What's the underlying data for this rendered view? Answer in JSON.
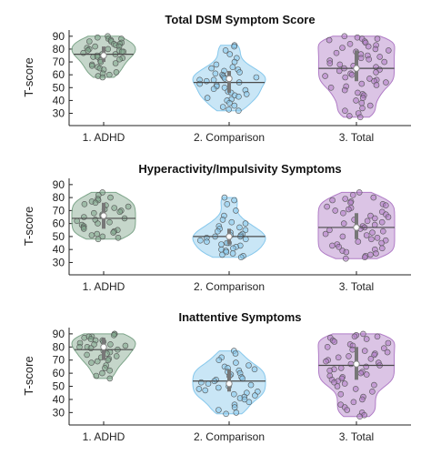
{
  "chart_data": [
    {
      "type": "violin",
      "title": "Total DSM Symptom Score",
      "ylabel": "T-score",
      "yticks": [
        30,
        40,
        50,
        60,
        70,
        80,
        90
      ],
      "ylim": [
        24,
        92
      ],
      "categories": [
        "1. ADHD",
        "2. Comparison",
        "3. Total"
      ],
      "series": [
        {
          "color": "#7ea58a",
          "min": 58,
          "max": 90,
          "mean": 76,
          "median": 75,
          "q1": 70,
          "q3": 82,
          "points": [
            90,
            89,
            88,
            88,
            87,
            86,
            86,
            85,
            84,
            84,
            83,
            82,
            82,
            81,
            80,
            80,
            79,
            79,
            78,
            78,
            77,
            76,
            76,
            75,
            74,
            74,
            73,
            72,
            71,
            70,
            69,
            68,
            67,
            66,
            65,
            64,
            62,
            61,
            60,
            59,
            58
          ]
        },
        {
          "color": "#87c8ec",
          "min": 32,
          "max": 83,
          "mean": 54,
          "median": 57,
          "q1": 46,
          "q3": 63,
          "points": [
            83,
            82,
            79,
            76,
            73,
            70,
            68,
            66,
            65,
            64,
            63,
            62,
            61,
            60,
            59,
            58,
            58,
            57,
            56,
            56,
            55,
            54,
            53,
            52,
            51,
            50,
            49,
            48,
            47,
            46,
            45,
            44,
            43,
            42,
            41,
            40,
            38,
            36,
            35,
            33,
            32
          ]
        },
        {
          "color": "#b07cc6",
          "min": 27,
          "max": 90,
          "mean": 65,
          "median": 65,
          "q1": 55,
          "q3": 79,
          "points": [
            90,
            89,
            88,
            88,
            87,
            86,
            85,
            84,
            83,
            82,
            81,
            80,
            79,
            78,
            77,
            76,
            75,
            74,
            73,
            72,
            71,
            70,
            69,
            68,
            67,
            66,
            65,
            64,
            63,
            62,
            61,
            60,
            59,
            58,
            57,
            56,
            55,
            54,
            53,
            52,
            51,
            50,
            48,
            46,
            45,
            44,
            42,
            40,
            38,
            36,
            34,
            32,
            30,
            28,
            27
          ]
        }
      ]
    },
    {
      "type": "violin",
      "title": "Hyperactivity/Impulsivity Symptoms",
      "ylabel": "T-score",
      "yticks": [
        30,
        40,
        50,
        60,
        70,
        80,
        90
      ],
      "ylim": [
        24,
        92
      ],
      "categories": [
        "1. ADHD",
        "2. Comparison",
        "3. Total"
      ],
      "series": [
        {
          "color": "#7ea58a",
          "min": 48,
          "max": 84,
          "mean": 64,
          "median": 66,
          "q1": 56,
          "q3": 76,
          "points": [
            84,
            82,
            80,
            79,
            78,
            77,
            76,
            75,
            74,
            73,
            72,
            71,
            70,
            69,
            68,
            67,
            66,
            65,
            64,
            63,
            62,
            61,
            60,
            59,
            58,
            57,
            56,
            55,
            54,
            53,
            52,
            51,
            50,
            49,
            48
          ]
        },
        {
          "color": "#87c8ec",
          "min": 34,
          "max": 80,
          "mean": 50,
          "median": 50,
          "q1": 44,
          "q3": 56,
          "points": [
            80,
            78,
            75,
            70,
            66,
            63,
            61,
            60,
            58,
            57,
            56,
            55,
            54,
            53,
            52,
            51,
            51,
            50,
            50,
            49,
            48,
            47,
            46,
            45,
            45,
            44,
            43,
            42,
            41,
            40,
            39,
            38,
            37,
            36,
            35,
            34
          ]
        },
        {
          "color": "#b07cc6",
          "min": 33,
          "max": 84,
          "mean": 57,
          "median": 57,
          "q1": 48,
          "q3": 68,
          "points": [
            84,
            82,
            80,
            79,
            78,
            77,
            76,
            75,
            74,
            73,
            72,
            71,
            70,
            69,
            68,
            67,
            66,
            65,
            64,
            63,
            62,
            61,
            60,
            59,
            58,
            57,
            56,
            55,
            54,
            53,
            52,
            51,
            50,
            49,
            48,
            47,
            46,
            45,
            44,
            43,
            42,
            41,
            40,
            39,
            38,
            37,
            36,
            35,
            34,
            33
          ]
        }
      ]
    },
    {
      "type": "violin",
      "title": "Inattentive Symptoms",
      "ylabel": "T-score",
      "yticks": [
        30,
        40,
        50,
        60,
        70,
        80,
        90
      ],
      "ylim": [
        24,
        92
      ],
      "categories": [
        "1. ADHD",
        "2. Comparison",
        "3. Total"
      ],
      "series": [
        {
          "color": "#7ea58a",
          "min": 56,
          "max": 90,
          "mean": 78,
          "median": 80,
          "q1": 70,
          "q3": 87,
          "points": [
            90,
            90,
            89,
            88,
            88,
            87,
            86,
            85,
            85,
            84,
            83,
            82,
            82,
            81,
            80,
            80,
            79,
            78,
            77,
            76,
            75,
            74,
            73,
            72,
            71,
            70,
            69,
            68,
            66,
            64,
            62,
            60,
            58,
            56
          ]
        },
        {
          "color": "#87c8ec",
          "min": 29,
          "max": 77,
          "mean": 54,
          "median": 52,
          "q1": 46,
          "q3": 63,
          "points": [
            77,
            75,
            72,
            70,
            68,
            66,
            65,
            64,
            63,
            62,
            61,
            60,
            59,
            58,
            57,
            56,
            55,
            54,
            53,
            52,
            51,
            50,
            49,
            48,
            47,
            46,
            45,
            44,
            43,
            42,
            41,
            40,
            38,
            36,
            34,
            32,
            30,
            29
          ]
        },
        {
          "color": "#b07cc6",
          "min": 27,
          "max": 90,
          "mean": 66,
          "median": 67,
          "q1": 55,
          "q3": 80,
          "points": [
            90,
            89,
            88,
            88,
            87,
            86,
            85,
            84,
            83,
            82,
            81,
            80,
            79,
            78,
            77,
            76,
            75,
            74,
            73,
            72,
            71,
            70,
            69,
            68,
            67,
            66,
            65,
            64,
            63,
            62,
            61,
            60,
            59,
            58,
            57,
            56,
            55,
            54,
            53,
            52,
            51,
            50,
            48,
            46,
            44,
            42,
            40,
            38,
            36,
            34,
            32,
            30,
            28,
            27
          ]
        }
      ]
    }
  ]
}
